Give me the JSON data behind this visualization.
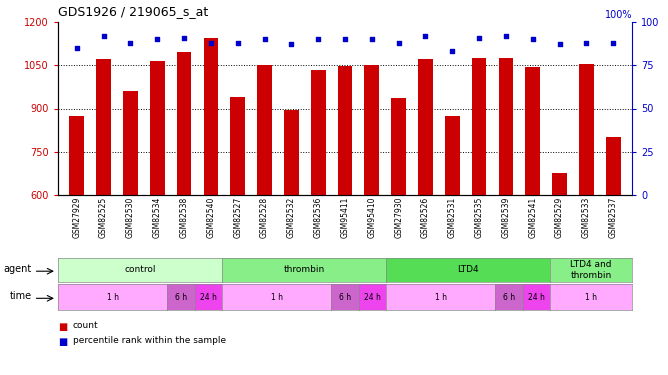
{
  "title": "GDS1926 / 219065_s_at",
  "samples": [
    "GSM27929",
    "GSM82525",
    "GSM82530",
    "GSM82534",
    "GSM82538",
    "GSM82540",
    "GSM82527",
    "GSM82528",
    "GSM82532",
    "GSM82536",
    "GSM95411",
    "GSM95410",
    "GSM27930",
    "GSM82526",
    "GSM82531",
    "GSM82535",
    "GSM82539",
    "GSM82541",
    "GSM82529",
    "GSM82533",
    "GSM82537"
  ],
  "counts": [
    875,
    1070,
    960,
    1065,
    1095,
    1145,
    940,
    1050,
    895,
    1035,
    1047,
    1050,
    935,
    1072,
    875,
    1075,
    1075,
    1045,
    675,
    1055,
    800
  ],
  "percentiles": [
    85,
    92,
    88,
    90,
    91,
    88,
    88,
    90,
    87,
    90,
    90,
    90,
    88,
    92,
    83,
    91,
    92,
    90,
    87,
    88,
    88
  ],
  "ylim_left": [
    600,
    1200
  ],
  "ylim_right": [
    0,
    100
  ],
  "yticks_left": [
    600,
    750,
    900,
    1050,
    1200
  ],
  "yticks_right": [
    0,
    25,
    50,
    75,
    100
  ],
  "bar_color": "#cc0000",
  "dot_color": "#0000cc",
  "agent_row": [
    {
      "label": "control",
      "start": 0,
      "end": 6,
      "color": "#ccffcc"
    },
    {
      "label": "thrombin",
      "start": 6,
      "end": 12,
      "color": "#88ee88"
    },
    {
      "label": "LTD4",
      "start": 12,
      "end": 18,
      "color": "#55dd55"
    },
    {
      "label": "LTD4 and\nthrombin",
      "start": 18,
      "end": 21,
      "color": "#88ee88"
    }
  ],
  "time_row": [
    {
      "label": "1 h",
      "start": 0,
      "end": 4,
      "color": "#ffaaff"
    },
    {
      "label": "6 h",
      "start": 4,
      "end": 5,
      "color": "#cc66cc"
    },
    {
      "label": "24 h",
      "start": 5,
      "end": 6,
      "color": "#ee44ee"
    },
    {
      "label": "1 h",
      "start": 6,
      "end": 10,
      "color": "#ffaaff"
    },
    {
      "label": "6 h",
      "start": 10,
      "end": 11,
      "color": "#cc66cc"
    },
    {
      "label": "24 h",
      "start": 11,
      "end": 12,
      "color": "#ee44ee"
    },
    {
      "label": "1 h",
      "start": 12,
      "end": 16,
      "color": "#ffaaff"
    },
    {
      "label": "6 h",
      "start": 16,
      "end": 17,
      "color": "#cc66cc"
    },
    {
      "label": "24 h",
      "start": 17,
      "end": 18,
      "color": "#ee44ee"
    },
    {
      "label": "1 h",
      "start": 18,
      "end": 21,
      "color": "#ffaaff"
    }
  ],
  "legend_count_color": "#cc0000",
  "legend_dot_color": "#0000cc",
  "bg_color": "#ffffff",
  "left_label_color": "#cc0000",
  "right_label_color": "#0000cc"
}
